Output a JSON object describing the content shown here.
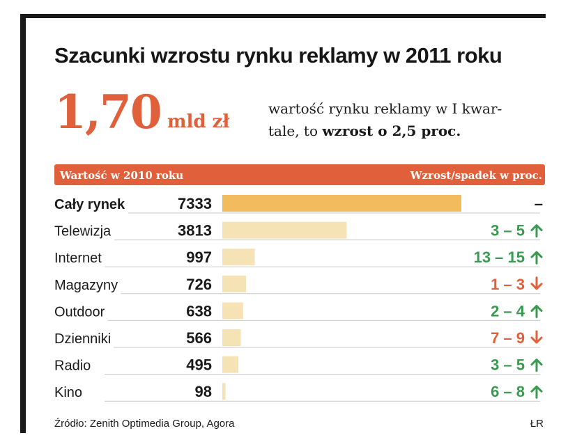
{
  "title": "Szacunki wzrostu rynku reklamy w 2011 roku",
  "headline": {
    "value": "1,70",
    "unit": "mld zł",
    "description_line1": "wartość rynku reklamy w I kwar-",
    "description_line2_plain": "tale, to ",
    "description_line2_bold": "wzrost o 2,5 proc."
  },
  "header": {
    "left": "Wartość w 2010 roku",
    "right": "Wzrost/spadek w proc."
  },
  "colors": {
    "accent": "#e0603c",
    "bar_total": "#f2bc5e",
    "bar": "#f5e3b6",
    "up": "#3b9a52",
    "down": "#e0603c",
    "neutral": "#1a1a1a"
  },
  "chart_data": {
    "type": "bar",
    "orientation": "horizontal",
    "categories": [
      "Cały rynek",
      "Telewizja",
      "Internet",
      "Magazyny",
      "Outdoor",
      "Dzienniki",
      "Radio",
      "Kino"
    ],
    "values": [
      7333,
      3813,
      997,
      726,
      638,
      566,
      495,
      98
    ],
    "value_labels": [
      "7333",
      "3813",
      "997",
      "726",
      "638",
      "566",
      "495",
      "98"
    ],
    "changes": [
      "–",
      "3 – 5",
      "13 – 15",
      "1 – 3",
      "2 – 4",
      "7 – 9",
      "3 – 5",
      "6 – 8"
    ],
    "directions": [
      "none",
      "up",
      "up",
      "down",
      "up",
      "down",
      "up",
      "up"
    ],
    "xlim": [
      0,
      7333
    ]
  },
  "footer": {
    "source": "Źródło: Zenith Optimedia Group, Agora",
    "credit": "ŁR"
  }
}
